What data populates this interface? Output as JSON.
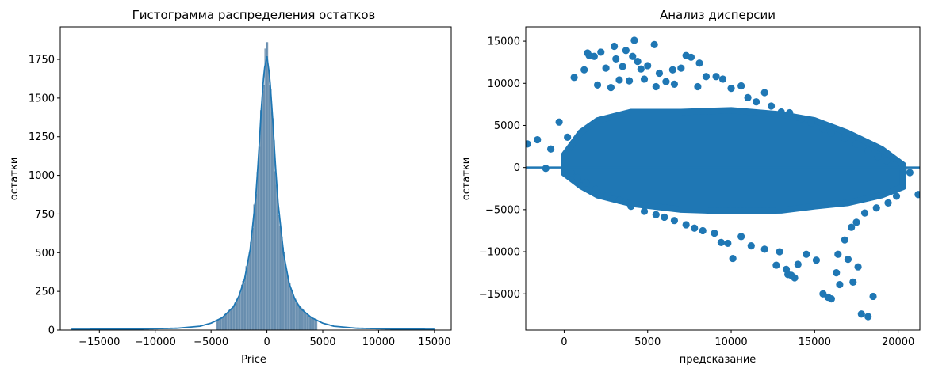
{
  "chart_data": [
    {
      "type": "histogram",
      "title": "Гистограмма распределения остатков",
      "xlabel": "Price",
      "ylabel": "остатки",
      "xlim": [
        -18500,
        16500
      ],
      "ylim": [
        0,
        1960
      ],
      "xticks": [
        -15000,
        -10000,
        -5000,
        0,
        5000,
        10000,
        15000
      ],
      "xtick_labels": [
        "−15000",
        "−10000",
        "−5000",
        "0",
        "5000",
        "10000",
        "15000"
      ],
      "yticks": [
        0,
        250,
        500,
        750,
        1000,
        1250,
        1500,
        1750
      ],
      "ytick_labels": [
        "0",
        "250",
        "500",
        "750",
        "1000",
        "1250",
        "1500",
        "1750"
      ],
      "bar_color": "#6f93b3",
      "kde_color": "#1f77b4",
      "grid": false,
      "density_curve": {
        "x": [
          -17500,
          -12000,
          -8000,
          -6000,
          -5000,
          -4000,
          -3000,
          -2500,
          -2000,
          -1500,
          -1000,
          -750,
          -500,
          -250,
          0,
          250,
          500,
          750,
          1000,
          1500,
          2000,
          2500,
          3000,
          4000,
          5000,
          6000,
          8000,
          12000,
          15000
        ],
        "y": [
          5,
          6,
          12,
          25,
          45,
          80,
          150,
          220,
          330,
          520,
          860,
          1120,
          1430,
          1680,
          1770,
          1640,
          1380,
          1080,
          820,
          490,
          300,
          200,
          140,
          80,
          45,
          25,
          12,
          6,
          5
        ]
      }
    },
    {
      "type": "scatter",
      "title": "Анализ дисперсии",
      "xlabel": "предсказание",
      "ylabel": "остатки",
      "xlim": [
        -2300,
        21300
      ],
      "ylim": [
        -19300,
        16700
      ],
      "xticks": [
        0,
        5000,
        10000,
        15000,
        20000
      ],
      "xtick_labels": [
        "0",
        "5000",
        "10000",
        "15000",
        "20000"
      ],
      "yticks": [
        -15000,
        -10000,
        -5000,
        0,
        5000,
        10000,
        15000
      ],
      "ytick_labels": [
        "−15000",
        "−10000",
        "−5000",
        "0",
        "5000",
        "10000",
        "15000"
      ],
      "point_color": "#1f77b4",
      "reference_line_y": 0,
      "grid": false,
      "points": [
        [
          -2200,
          2800
        ],
        [
          -1600,
          3300
        ],
        [
          -1100,
          -100
        ],
        [
          -800,
          2200
        ],
        [
          -300,
          5400
        ],
        [
          200,
          3600
        ],
        [
          600,
          10700
        ],
        [
          1200,
          11600
        ],
        [
          1400,
          13600
        ],
        [
          1500,
          13300
        ],
        [
          1800,
          13200
        ],
        [
          2200,
          13700
        ],
        [
          2500,
          11800
        ],
        [
          3000,
          14400
        ],
        [
          3100,
          12900
        ],
        [
          3500,
          12000
        ],
        [
          3700,
          13900
        ],
        [
          3900,
          10300
        ],
        [
          4100,
          13200
        ],
        [
          4200,
          15100
        ],
        [
          4400,
          12600
        ],
        [
          4600,
          11700
        ],
        [
          5000,
          12100
        ],
        [
          5400,
          14600
        ],
        [
          5700,
          11200
        ],
        [
          6100,
          10200
        ],
        [
          6500,
          11600
        ],
        [
          7000,
          11800
        ],
        [
          7300,
          13300
        ],
        [
          7600,
          13100
        ],
        [
          8100,
          12400
        ],
        [
          8500,
          10800
        ],
        [
          9100,
          10800
        ],
        [
          9500,
          10500
        ],
        [
          2000,
          9800
        ],
        [
          2800,
          9500
        ],
        [
          3300,
          10400
        ],
        [
          4800,
          10500
        ],
        [
          5500,
          9600
        ],
        [
          6600,
          9900
        ],
        [
          8000,
          9600
        ],
        [
          10000,
          9400
        ],
        [
          10600,
          9700
        ],
        [
          11000,
          8300
        ],
        [
          11500,
          7800
        ],
        [
          12000,
          8900
        ],
        [
          12400,
          7300
        ],
        [
          13000,
          6600
        ],
        [
          13500,
          6500
        ],
        [
          14200,
          5800
        ],
        [
          14800,
          5300
        ],
        [
          15500,
          4600
        ],
        [
          16000,
          4100
        ],
        [
          16800,
          3500
        ],
        [
          17500,
          2800
        ],
        [
          18200,
          2000
        ],
        [
          18800,
          1300
        ],
        [
          19300,
          800
        ],
        [
          19800,
          300
        ],
        [
          20300,
          -200
        ],
        [
          20700,
          -600
        ],
        [
          21200,
          -3200
        ],
        [
          19900,
          -3400
        ],
        [
          19400,
          -4200
        ],
        [
          18700,
          -4800
        ],
        [
          18000,
          -5400
        ],
        [
          17500,
          -6500
        ],
        [
          17200,
          -7100
        ],
        [
          16800,
          -8600
        ],
        [
          16400,
          -10300
        ],
        [
          17000,
          -10900
        ],
        [
          17600,
          -11800
        ],
        [
          17300,
          -13600
        ],
        [
          16500,
          -13900
        ],
        [
          18500,
          -15300
        ],
        [
          17800,
          -17400
        ],
        [
          18200,
          -17700
        ],
        [
          15500,
          -15000
        ],
        [
          15800,
          -15400
        ],
        [
          16000,
          -15600
        ],
        [
          16300,
          -12500
        ],
        [
          15100,
          -11000
        ],
        [
          14500,
          -10300
        ],
        [
          13600,
          -12800
        ],
        [
          13300,
          -12100
        ],
        [
          12900,
          -10000
        ],
        [
          12700,
          -11600
        ],
        [
          13800,
          -13100
        ],
        [
          13400,
          -12700
        ],
        [
          14000,
          -11500
        ],
        [
          12000,
          -9700
        ],
        [
          11200,
          -9300
        ],
        [
          10600,
          -8200
        ],
        [
          10100,
          -10800
        ],
        [
          9800,
          -9000
        ],
        [
          9400,
          -8900
        ],
        [
          9000,
          -7800
        ],
        [
          8300,
          -7500
        ],
        [
          7800,
          -7200
        ],
        [
          7300,
          -6800
        ],
        [
          6600,
          -6300
        ],
        [
          6000,
          -5900
        ],
        [
          5500,
          -5600
        ],
        [
          4800,
          -5200
        ],
        [
          4000,
          -4600
        ],
        [
          3300,
          -3900
        ],
        [
          2600,
          -3300
        ],
        [
          1900,
          -2600
        ],
        [
          1300,
          -1800
        ],
        [
          800,
          -1200
        ],
        [
          400,
          -600
        ],
        [
          100,
          700
        ]
      ]
    }
  ]
}
